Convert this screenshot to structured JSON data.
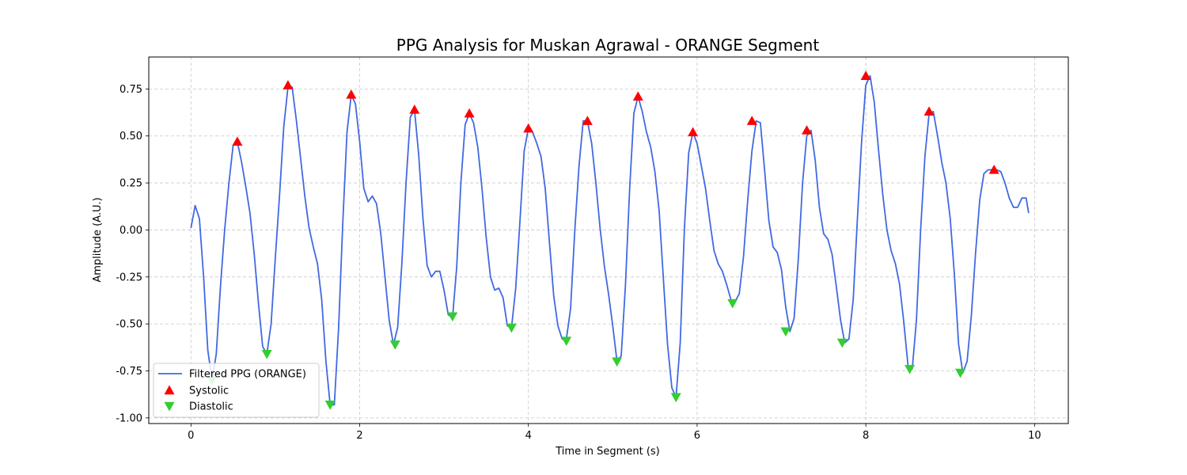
{
  "chart_data": {
    "type": "line",
    "title": "PPG Analysis for Muskan Agrawal - ORANGE Segment",
    "xlabel": "Time in Segment (s)",
    "ylabel": "Amplitude (A.U.)",
    "xlim": [
      -0.5,
      10.4
    ],
    "ylim": [
      -1.03,
      0.92
    ],
    "xticks": [
      0,
      2,
      4,
      6,
      8,
      10
    ],
    "yticks": [
      -1.0,
      -0.75,
      -0.5,
      -0.25,
      0.0,
      0.25,
      0.5,
      0.75
    ],
    "grid": true,
    "legend_position": "lower left",
    "series": [
      {
        "name": "Filtered PPG (ORANGE)",
        "color": "#4169e1",
        "x": [
          0.0,
          0.05,
          0.1,
          0.15,
          0.2,
          0.25,
          0.3,
          0.35,
          0.4,
          0.45,
          0.5,
          0.55,
          0.6,
          0.65,
          0.7,
          0.75,
          0.8,
          0.85,
          0.9,
          0.95,
          1.0,
          1.05,
          1.1,
          1.15,
          1.2,
          1.25,
          1.3,
          1.35,
          1.4,
          1.45,
          1.5,
          1.55,
          1.6,
          1.65,
          1.7,
          1.75,
          1.8,
          1.85,
          1.9,
          1.95,
          2.0,
          2.05,
          2.1,
          2.15,
          2.2,
          2.25,
          2.3,
          2.35,
          2.4,
          2.45,
          2.5,
          2.55,
          2.6,
          2.65,
          2.7,
          2.75,
          2.8,
          2.85,
          2.9,
          2.95,
          3.0,
          3.05,
          3.1,
          3.15,
          3.2,
          3.25,
          3.3,
          3.35,
          3.4,
          3.45,
          3.5,
          3.55,
          3.6,
          3.65,
          3.7,
          3.75,
          3.8,
          3.85,
          3.9,
          3.95,
          4.0,
          4.05,
          4.1,
          4.15,
          4.2,
          4.25,
          4.3,
          4.35,
          4.4,
          4.45,
          4.5,
          4.55,
          4.6,
          4.65,
          4.7,
          4.75,
          4.8,
          4.85,
          4.9,
          4.95,
          5.0,
          5.05,
          5.1,
          5.15,
          5.2,
          5.25,
          5.3,
          5.35,
          5.4,
          5.45,
          5.5,
          5.55,
          5.6,
          5.65,
          5.7,
          5.75,
          5.8,
          5.85,
          5.9,
          5.95,
          6.0,
          6.05,
          6.1,
          6.15,
          6.2,
          6.25,
          6.3,
          6.35,
          6.4,
          6.45,
          6.5,
          6.55,
          6.6,
          6.65,
          6.7,
          6.75,
          6.8,
          6.85,
          6.9,
          6.95,
          7.0,
          7.05,
          7.1,
          7.15,
          7.2,
          7.25,
          7.3,
          7.35,
          7.4,
          7.45,
          7.5,
          7.55,
          7.6,
          7.65,
          7.7,
          7.75,
          7.8,
          7.85,
          7.9,
          7.95,
          8.0,
          8.05,
          8.1,
          8.15,
          8.2,
          8.25,
          8.3,
          8.35,
          8.4,
          8.45,
          8.5,
          8.55,
          8.6,
          8.65,
          8.7,
          8.75,
          8.8,
          8.85,
          8.9,
          8.95,
          9.0,
          9.05,
          9.1,
          9.15,
          9.2,
          9.25,
          9.3,
          9.35,
          9.4,
          9.45,
          9.5,
          9.55,
          9.6,
          9.65,
          9.7,
          9.75,
          9.8,
          9.85,
          9.9,
          9.93
        ],
        "y": [
          0.01,
          0.13,
          0.06,
          -0.25,
          -0.64,
          -0.8,
          -0.66,
          -0.3,
          0.0,
          0.25,
          0.45,
          0.47,
          0.36,
          0.23,
          0.09,
          -0.13,
          -0.39,
          -0.62,
          -0.66,
          -0.5,
          -0.15,
          0.18,
          0.55,
          0.76,
          0.76,
          0.58,
          0.38,
          0.18,
          0.01,
          -0.09,
          -0.18,
          -0.37,
          -0.7,
          -0.93,
          -0.93,
          -0.52,
          0.04,
          0.52,
          0.72,
          0.67,
          0.47,
          0.22,
          0.15,
          0.18,
          0.14,
          -0.02,
          -0.25,
          -0.48,
          -0.61,
          -0.52,
          -0.18,
          0.25,
          0.6,
          0.64,
          0.4,
          0.06,
          -0.19,
          -0.25,
          -0.22,
          -0.22,
          -0.32,
          -0.45,
          -0.47,
          -0.2,
          0.25,
          0.56,
          0.62,
          0.57,
          0.44,
          0.22,
          -0.04,
          -0.25,
          -0.32,
          -0.31,
          -0.36,
          -0.51,
          -0.52,
          -0.31,
          0.05,
          0.42,
          0.54,
          0.52,
          0.46,
          0.39,
          0.22,
          -0.07,
          -0.35,
          -0.51,
          -0.58,
          -0.58,
          -0.42,
          0.0,
          0.34,
          0.58,
          0.58,
          0.46,
          0.25,
          0.01,
          -0.19,
          -0.34,
          -0.51,
          -0.7,
          -0.67,
          -0.3,
          0.22,
          0.62,
          0.71,
          0.63,
          0.52,
          0.44,
          0.31,
          0.1,
          -0.26,
          -0.61,
          -0.84,
          -0.89,
          -0.6,
          0.01,
          0.41,
          0.52,
          0.46,
          0.34,
          0.22,
          0.05,
          -0.11,
          -0.18,
          -0.22,
          -0.29,
          -0.37,
          -0.38,
          -0.34,
          -0.14,
          0.16,
          0.42,
          0.58,
          0.57,
          0.32,
          0.05,
          -0.09,
          -0.12,
          -0.21,
          -0.41,
          -0.54,
          -0.47,
          -0.15,
          0.25,
          0.5,
          0.53,
          0.37,
          0.12,
          -0.02,
          -0.05,
          -0.13,
          -0.3,
          -0.48,
          -0.6,
          -0.58,
          -0.37,
          0.06,
          0.47,
          0.77,
          0.82,
          0.68,
          0.43,
          0.19,
          0.0,
          -0.11,
          -0.18,
          -0.29,
          -0.49,
          -0.72,
          -0.74,
          -0.48,
          0.0,
          0.39,
          0.62,
          0.63,
          0.5,
          0.36,
          0.25,
          0.06,
          -0.24,
          -0.61,
          -0.76,
          -0.7,
          -0.46,
          -0.13,
          0.16,
          0.3,
          0.32,
          0.32,
          0.32,
          0.31,
          0.25,
          0.17,
          0.12,
          0.12,
          0.17,
          0.17,
          0.09
        ]
      },
      {
        "name": "Systolic",
        "color": "#ff0000",
        "marker": "triangle-up",
        "x": [
          0.55,
          1.15,
          1.9,
          2.65,
          3.3,
          4.0,
          4.7,
          5.3,
          5.95,
          6.65,
          7.3,
          8.0,
          8.75,
          9.52
        ],
        "y": [
          0.47,
          0.77,
          0.72,
          0.64,
          0.62,
          0.54,
          0.58,
          0.71,
          0.52,
          0.58,
          0.53,
          0.82,
          0.63,
          0.32
        ]
      },
      {
        "name": "Diastolic",
        "color": "#32cd32",
        "marker": "triangle-down",
        "x": [
          0.25,
          0.9,
          1.65,
          2.42,
          3.1,
          3.8,
          4.45,
          5.05,
          5.75,
          6.42,
          7.05,
          7.72,
          8.52,
          9.12
        ],
        "y": [
          -0.8,
          -0.66,
          -0.93,
          -0.61,
          -0.46,
          -0.52,
          -0.59,
          -0.7,
          -0.89,
          -0.39,
          -0.54,
          -0.6,
          -0.74,
          -0.76
        ]
      }
    ]
  }
}
